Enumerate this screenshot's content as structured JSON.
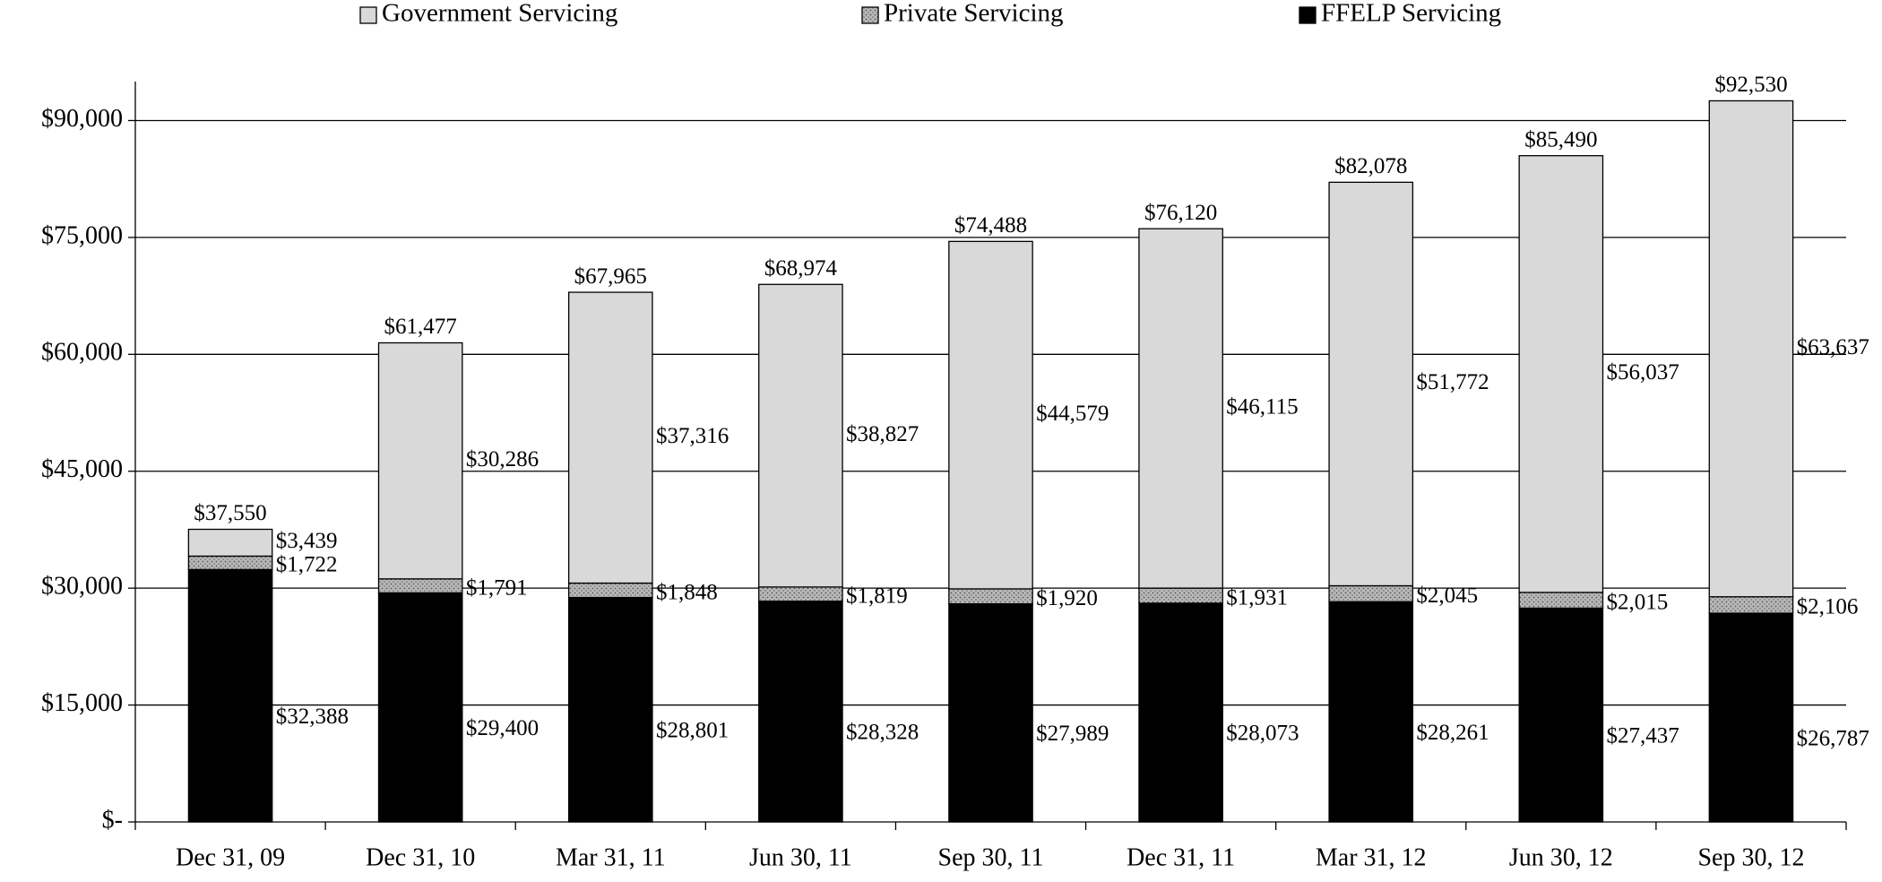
{
  "chart_data": {
    "type": "stacked_bar",
    "categories": [
      "Dec 31, 09",
      "Dec 31, 10",
      "Mar 31, 11",
      "Jun 30, 11",
      "Sep 30, 11",
      "Dec 31, 11",
      "Mar 31, 12",
      "Jun 30, 12",
      "Sep 30, 12"
    ],
    "series": [
      {
        "name": "Government Servicing",
        "color": "#d9d9d9",
        "values": [
          3439,
          30286,
          37316,
          38827,
          44579,
          46115,
          51772,
          56037,
          63637
        ],
        "value_labels": [
          "$3,439",
          "$30,286",
          "$37,316",
          "$38,827",
          "$44,579",
          "$46,115",
          "$51,772",
          "$56,037",
          "$63,637"
        ]
      },
      {
        "name": "Private Servicing",
        "color": "#b8b8b8",
        "values": [
          1722,
          1791,
          1848,
          1819,
          1920,
          1931,
          2045,
          2015,
          2106
        ],
        "value_labels": [
          "$1,722",
          "$1,791",
          "$1,848",
          "$1,819",
          "$1,920",
          "$1,931",
          "$2,045",
          "$2,015",
          "$2,106"
        ]
      },
      {
        "name": "FFELP Servicing",
        "color": "#000000",
        "values": [
          32388,
          29400,
          28801,
          28328,
          27989,
          28073,
          28261,
          27437,
          26787
        ],
        "value_labels": [
          "$32,388",
          "$29,400",
          "$28,801",
          "$28,328",
          "$27,989",
          "$28,073",
          "$28,261",
          "$27,437",
          "$26,787"
        ]
      }
    ],
    "totals": [
      37550,
      61477,
      67965,
      68974,
      74488,
      76120,
      82078,
      85490,
      92530
    ],
    "total_labels": [
      "$37,550",
      "$61,477",
      "$67,965",
      "$68,974",
      "$74,488",
      "$76,120",
      "$82,078",
      "$85,490",
      "$92,530"
    ],
    "ylim": [
      0,
      95000
    ],
    "yticks": [
      {
        "value": 0,
        "label": "$-"
      },
      {
        "value": 15000,
        "label": "$15,000"
      },
      {
        "value": 30000,
        "label": "$30,000"
      },
      {
        "value": 45000,
        "label": "$45,000"
      },
      {
        "value": 60000,
        "label": "$60,000"
      },
      {
        "value": 75000,
        "label": "$75,000"
      },
      {
        "value": 90000,
        "label": "$90,000"
      }
    ],
    "grid": true
  }
}
